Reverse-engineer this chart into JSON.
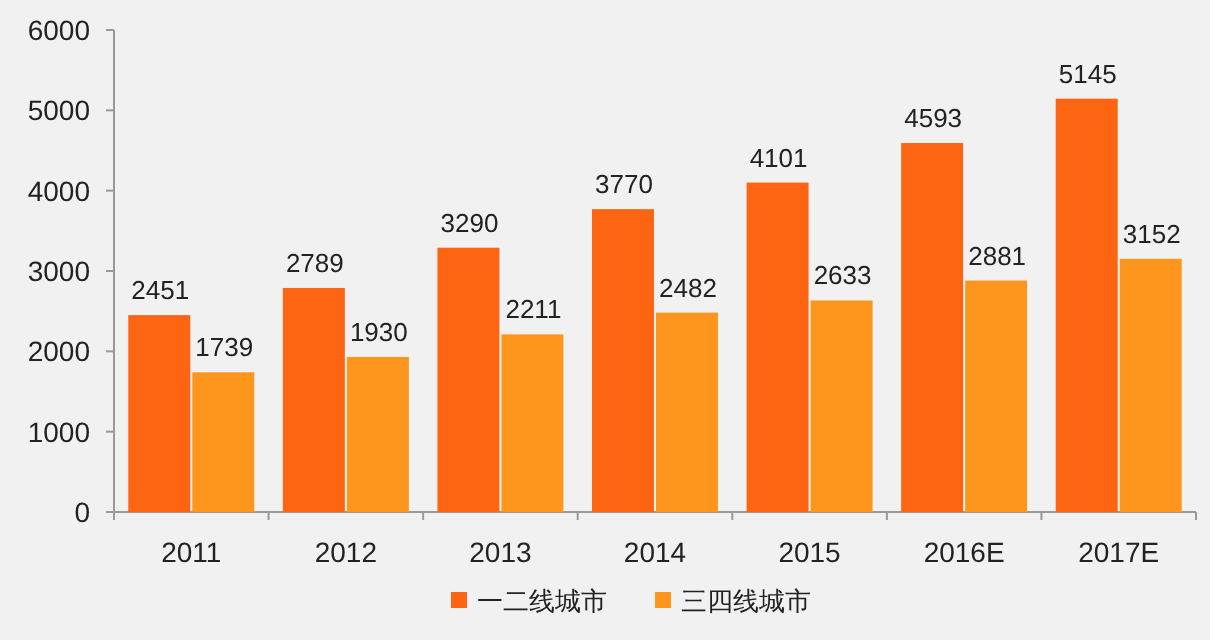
{
  "chart_data": {
    "type": "bar",
    "categories": [
      "2011",
      "2012",
      "2013",
      "2014",
      "2015",
      "2016E",
      "2017E"
    ],
    "series": [
      {
        "name": "一二线城市",
        "color": "#fe6512",
        "values": [
          2451,
          2789,
          3290,
          3770,
          4101,
          4593,
          5145
        ]
      },
      {
        "name": "三四线城市",
        "color": "#fe961e",
        "values": [
          1739,
          1930,
          2211,
          2482,
          2633,
          2881,
          3152
        ]
      }
    ],
    "ylim": [
      0,
      6000
    ],
    "yticks": [
      0,
      1000,
      2000,
      3000,
      4000,
      5000,
      6000
    ],
    "grid": false,
    "legend": "bottom",
    "data_labels": true
  }
}
